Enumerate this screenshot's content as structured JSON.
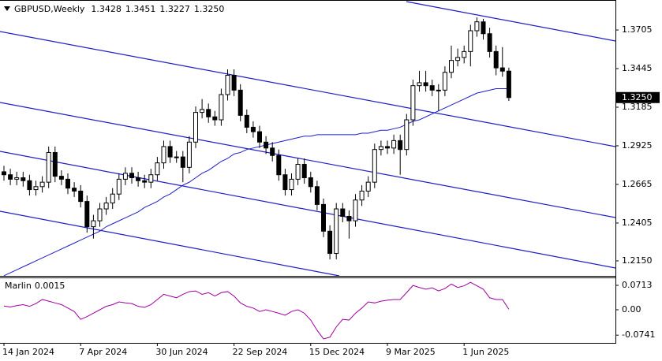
{
  "header": {
    "symbol": "GBPUSD,Weekly",
    "ohlc": [
      "1.3428",
      "1.3451",
      "1.3227",
      "1.3250"
    ]
  },
  "chart_data": {
    "type": "candlestick",
    "categories": [
      "14 Jan 2024",
      null,
      null,
      null,
      null,
      null,
      null,
      null,
      null,
      null,
      null,
      null,
      "7 Apr 2024",
      null,
      null,
      null,
      null,
      null,
      null,
      null,
      null,
      null,
      null,
      null,
      "30 Jun 2024",
      null,
      null,
      null,
      null,
      null,
      null,
      null,
      null,
      null,
      null,
      null,
      "22 Sep 2024",
      null,
      null,
      null,
      null,
      null,
      null,
      null,
      null,
      null,
      null,
      null,
      "15 Dec 2024",
      null,
      null,
      null,
      null,
      null,
      null,
      null,
      null,
      null,
      null,
      null,
      "9 Mar 2025",
      null,
      null,
      null,
      null,
      null,
      null,
      null,
      null,
      null,
      null,
      null,
      "1 Jun 2025",
      null,
      null,
      null,
      null,
      null,
      null,
      null
    ],
    "open": [
      1.275,
      1.273,
      1.27,
      1.271,
      1.269,
      1.263,
      1.265,
      1.268,
      1.288,
      1.272,
      1.27,
      1.264,
      1.262,
      1.255,
      1.238,
      1.242,
      1.25,
      1.254,
      1.26,
      1.27,
      1.274,
      1.271,
      1.269,
      1.268,
      1.273,
      1.281,
      1.292,
      1.285,
      1.285,
      1.278,
      1.295,
      1.315,
      1.317,
      1.312,
      1.31,
      1.327,
      1.34,
      1.33,
      1.313,
      1.305,
      1.302,
      1.295,
      1.291,
      1.286,
      1.273,
      1.263,
      1.27,
      1.28,
      1.271,
      1.265,
      1.253,
      1.235,
      1.22,
      1.25,
      1.245,
      1.242,
      1.256,
      1.262,
      1.268,
      1.29,
      1.292,
      1.291,
      1.296,
      1.29,
      1.31,
      1.333,
      1.335,
      1.333,
      1.33,
      1.33,
      1.342,
      1.35,
      1.352,
      1.356,
      1.37,
      1.376,
      1.368,
      1.356,
      1.345,
      1.3428
    ],
    "high": [
      1.279,
      1.277,
      1.275,
      1.275,
      1.273,
      1.269,
      1.272,
      1.292,
      1.292,
      1.276,
      1.274,
      1.268,
      1.266,
      1.259,
      1.246,
      1.254,
      1.258,
      1.264,
      1.274,
      1.278,
      1.278,
      1.275,
      1.273,
      1.277,
      1.285,
      1.296,
      1.296,
      1.289,
      1.289,
      1.299,
      1.319,
      1.324,
      1.321,
      1.316,
      1.331,
      1.344,
      1.344,
      1.334,
      1.317,
      1.309,
      1.306,
      1.299,
      1.295,
      1.29,
      1.277,
      1.274,
      1.284,
      1.284,
      1.275,
      1.269,
      1.257,
      1.239,
      1.254,
      1.254,
      1.249,
      1.26,
      1.266,
      1.272,
      1.294,
      1.296,
      1.296,
      1.3,
      1.3,
      1.314,
      1.337,
      1.343,
      1.343,
      1.337,
      1.334,
      1.346,
      1.36,
      1.358,
      1.36,
      1.374,
      1.379,
      1.378,
      1.372,
      1.36,
      1.359,
      1.3451
    ],
    "low": [
      1.269,
      1.266,
      1.266,
      1.265,
      1.259,
      1.259,
      1.261,
      1.264,
      1.268,
      1.266,
      1.26,
      1.258,
      1.251,
      1.234,
      1.23,
      1.238,
      1.246,
      1.25,
      1.256,
      1.266,
      1.267,
      1.265,
      1.264,
      1.264,
      1.269,
      1.277,
      1.281,
      1.281,
      1.268,
      1.274,
      1.291,
      1.311,
      1.308,
      1.306,
      1.306,
      1.323,
      1.326,
      1.309,
      1.301,
      1.298,
      1.291,
      1.287,
      1.282,
      1.269,
      1.259,
      1.259,
      1.266,
      1.267,
      1.261,
      1.249,
      1.231,
      1.216,
      1.216,
      1.241,
      1.23,
      1.238,
      1.252,
      1.258,
      1.264,
      1.286,
      1.287,
      1.287,
      1.273,
      1.286,
      1.306,
      1.329,
      1.329,
      1.326,
      1.316,
      1.326,
      1.338,
      1.346,
      1.348,
      1.346,
      1.366,
      1.364,
      1.352,
      1.34,
      1.339,
      1.3227
    ],
    "close": [
      1.273,
      1.27,
      1.271,
      1.269,
      1.263,
      1.265,
      1.268,
      1.288,
      1.272,
      1.27,
      1.264,
      1.262,
      1.255,
      1.238,
      1.242,
      1.25,
      1.254,
      1.26,
      1.27,
      1.274,
      1.271,
      1.269,
      1.268,
      1.273,
      1.281,
      1.292,
      1.285,
      1.285,
      1.278,
      1.295,
      1.315,
      1.317,
      1.312,
      1.31,
      1.327,
      1.34,
      1.33,
      1.313,
      1.305,
      1.302,
      1.295,
      1.291,
      1.286,
      1.273,
      1.263,
      1.27,
      1.28,
      1.271,
      1.265,
      1.253,
      1.235,
      1.22,
      1.25,
      1.245,
      1.242,
      1.256,
      1.262,
      1.268,
      1.29,
      1.292,
      1.291,
      1.296,
      1.29,
      1.31,
      1.333,
      1.335,
      1.333,
      1.33,
      1.33,
      1.342,
      1.35,
      1.352,
      1.356,
      1.37,
      1.376,
      1.368,
      1.356,
      1.345,
      1.3428,
      1.325
    ],
    "bull_color": "#ffffff",
    "bear_color": "#000000",
    "ylim": [
      1.2049,
      1.3907
    ],
    "yticks": [
      1.3705,
      1.3445,
      1.3185,
      1.2925,
      1.2665,
      1.2405,
      {
        "value": 1.215,
        "label": "1.2150"
      }
    ],
    "last_price_label": "1.3250",
    "ma": {
      "color": "#1e1ec8",
      "values": [
        1.205,
        1.207,
        1.209,
        1.211,
        1.213,
        1.215,
        1.217,
        1.219,
        1.221,
        1.223,
        1.225,
        1.227,
        1.229,
        1.231,
        1.233,
        1.235,
        1.238,
        1.24,
        1.242,
        1.244,
        1.246,
        1.248,
        1.251,
        1.253,
        1.255,
        1.258,
        1.26,
        1.263,
        1.266,
        1.268,
        1.271,
        1.274,
        1.276,
        1.279,
        1.282,
        1.284,
        1.287,
        1.288,
        1.29,
        1.291,
        1.292,
        1.293,
        1.294,
        1.295,
        1.296,
        1.297,
        1.298,
        1.299,
        1.299,
        1.3,
        1.3,
        1.3,
        1.3,
        1.3,
        1.3,
        1.3,
        1.301,
        1.301,
        1.302,
        1.303,
        1.303,
        1.304,
        1.305,
        1.307,
        1.309,
        1.31,
        1.312,
        1.314,
        1.316,
        1.318,
        1.32,
        1.322,
        1.324,
        1.326,
        1.328,
        1.329,
        1.33,
        1.331,
        1.331,
        1.331
      ]
    },
    "oscillator": {
      "name": "Marlin",
      "color": "#a000a0",
      "values": [
        0.011,
        0.008,
        0.012,
        0.015,
        0.01,
        0.018,
        0.03,
        0.025,
        0.02,
        0.015,
        0.005,
        -0.005,
        -0.028,
        -0.02,
        -0.01,
        0.0,
        0.01,
        0.015,
        0.023,
        0.02,
        0.018,
        0.01,
        0.007,
        0.015,
        0.03,
        0.045,
        0.04,
        0.035,
        0.045,
        0.053,
        0.055,
        0.045,
        0.05,
        0.04,
        0.05,
        0.053,
        0.04,
        0.02,
        0.01,
        0.005,
        -0.005,
        0.0,
        -0.005,
        -0.01,
        -0.016,
        -0.005,
        0.0,
        -0.01,
        -0.03,
        -0.06,
        -0.085,
        -0.08,
        -0.05,
        -0.028,
        -0.03,
        -0.01,
        0.005,
        0.023,
        0.02,
        0.025,
        0.028,
        0.03,
        0.03,
        0.05,
        0.071,
        0.065,
        0.06,
        0.064,
        0.055,
        0.062,
        0.075,
        0.065,
        0.07,
        0.08,
        0.07,
        0.06,
        0.035,
        0.03,
        0.03,
        0.0015
      ],
      "ylim": [
        -0.0966,
        0.0943
      ],
      "yticks": [
        0.0713,
        {
          "value": 0,
          "label": "0.00"
        },
        -0.0741
      ]
    }
  }
}
